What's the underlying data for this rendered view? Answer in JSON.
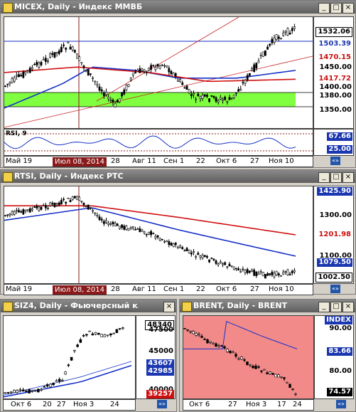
{
  "colors": {
    "price_up": "#ffffff",
    "price_down": "#000000",
    "ma_blue": "#1530c8",
    "ma_red": "#d01010",
    "trend": "#c82020",
    "green_zone": "#80ff40",
    "tag_blue": "#1a36b0",
    "tag_red": "#cc1010",
    "tag_black": "#000000",
    "brent_bg": "#f28a8a"
  },
  "micex": {
    "title": "MICEX, Daily - Индекс ММВБ",
    "price_labels": [
      "1532.06",
      "1503.39",
      "1470.15",
      "1450.00",
      "1417.72",
      "1400.00",
      "1380.00",
      "1350.00"
    ],
    "price_tags": {
      "last": "1532.06",
      "blue_line": "1503.39",
      "red1": "1470.15",
      "red2": "1417.72"
    },
    "rsi_label": "RSI, 9",
    "rsi_values": [
      "67.66",
      "25.00"
    ],
    "xaxis": [
      "Май 19",
      "Июл 08, 2014",
      "28",
      "Авг 11",
      "Сен 1",
      "22",
      "Окт 6",
      "27",
      "Ноя 10"
    ]
  },
  "rtsi": {
    "title": "RTSI, Daily - Индекс РТС",
    "price_labels": [
      "1425.90",
      "1300.00",
      "1201.98",
      "1100.00",
      "1079.50",
      "1002.50"
    ],
    "xaxis": [
      "Май 19",
      "Июл 08, 2014",
      "28",
      "Авг 11",
      "Сен 1",
      "22",
      "Окт 6",
      "27",
      "Ноя 10"
    ]
  },
  "siz4": {
    "title": "SIZ4, Daily - Фьючерсный к...",
    "price_labels": [
      "48340",
      "47500",
      "45000",
      "43607",
      "42985",
      "40000",
      "39257"
    ],
    "xaxis": [
      "Окт 6",
      "20",
      "27",
      "Ноя 3",
      "24"
    ]
  },
  "brent": {
    "title": "BRENT, Daily - BRENT",
    "index_label": "INDEX",
    "price_labels": [
      "90.00",
      "83.66",
      "80.00",
      "74.57"
    ],
    "xaxis": [
      "Окт 6",
      "27",
      "Ноя 3",
      "17",
      "24"
    ]
  },
  "window_buttons": {
    "min": "_",
    "max": "□",
    "close": "×"
  },
  "nav_icon": "«»"
}
